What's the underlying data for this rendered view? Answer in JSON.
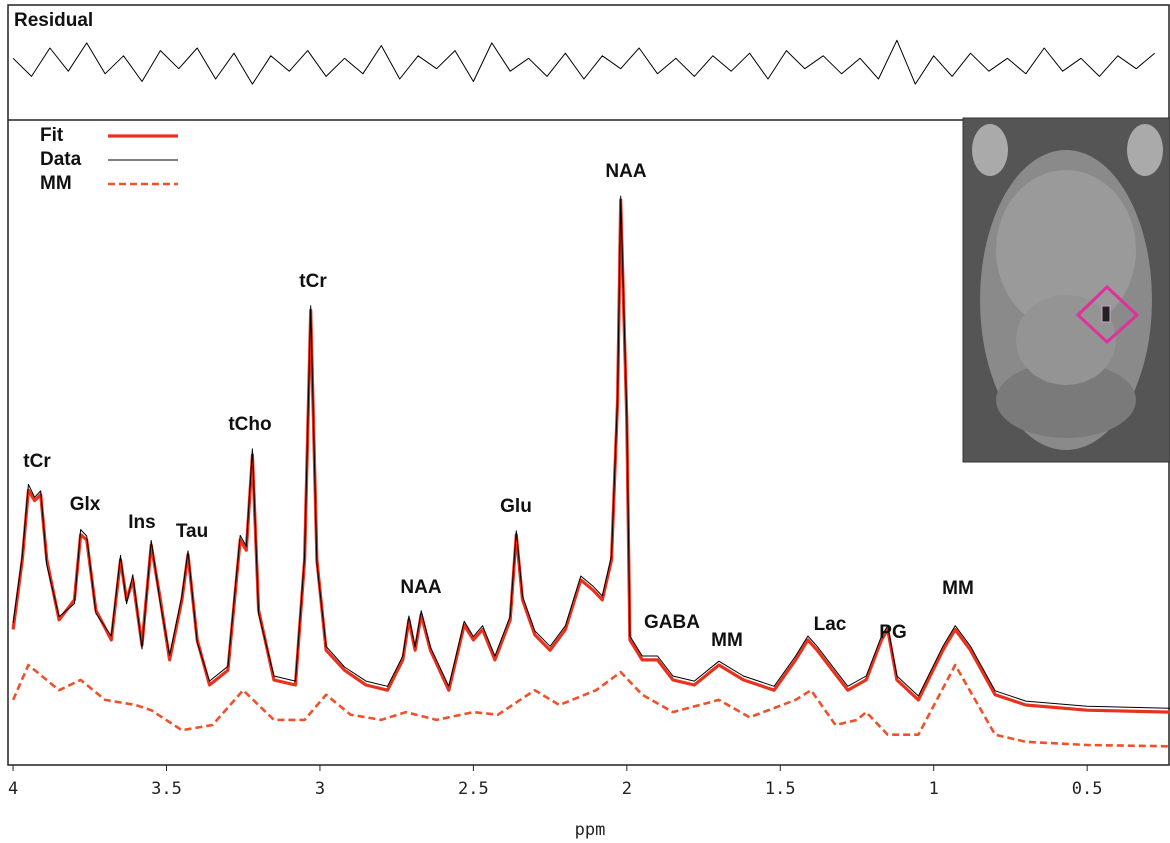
{
  "chart_data": [
    {
      "type": "line",
      "title": "Residual",
      "xlim": [
        4.01,
        0.23
      ],
      "ylim": [
        -20,
        20
      ],
      "series": [
        {
          "name": "Residual",
          "color": "#000000",
          "x": [
            4.0,
            3.94,
            3.88,
            3.82,
            3.76,
            3.7,
            3.64,
            3.58,
            3.52,
            3.46,
            3.4,
            3.34,
            3.28,
            3.22,
            3.16,
            3.1,
            3.04,
            2.98,
            2.92,
            2.86,
            2.8,
            2.74,
            2.68,
            2.62,
            2.56,
            2.5,
            2.44,
            2.38,
            2.32,
            2.26,
            2.2,
            2.14,
            2.08,
            2.02,
            1.96,
            1.9,
            1.84,
            1.78,
            1.72,
            1.66,
            1.6,
            1.54,
            1.48,
            1.42,
            1.36,
            1.3,
            1.24,
            1.18,
            1.12,
            1.06,
            1.0,
            0.94,
            0.88,
            0.82,
            0.76,
            0.7,
            0.64,
            0.58,
            0.52,
            0.46,
            0.4,
            0.34,
            0.28
          ],
          "values": [
            2,
            -5,
            6,
            -3,
            8,
            -4,
            3,
            -7,
            5,
            -2,
            6,
            -6,
            4,
            -8,
            3,
            -3,
            5,
            -5,
            2,
            -4,
            7,
            -6,
            3,
            -2,
            5,
            -7,
            8,
            -3,
            2,
            -5,
            4,
            -6,
            3,
            -2,
            6,
            -4,
            2,
            -5,
            3,
            -3,
            4,
            -6,
            5,
            -2,
            3,
            -4,
            2,
            -6,
            9,
            -8,
            3,
            -5,
            4,
            -3,
            2,
            -4,
            6,
            -3,
            2,
            -5,
            3,
            -2,
            4
          ]
        }
      ]
    },
    {
      "type": "line",
      "xlabel": "ppm",
      "xlim": [
        4.01,
        0.23
      ],
      "ylim": [
        0,
        100
      ],
      "xticks": [
        4,
        3.5,
        3,
        2.5,
        2,
        1.5,
        1,
        0.5
      ],
      "legend": "upper left",
      "annotations": [
        "tCr",
        "Glx",
        "Ins",
        "Tau",
        "tCho",
        "tCr",
        "NAA",
        "Glu",
        "NAA",
        "GABA",
        "MM",
        "Lac",
        "PG",
        "MM"
      ],
      "series": [
        {
          "name": "Fit",
          "color": "#e8321e",
          "x": [
            4.0,
            3.97,
            3.95,
            3.93,
            3.91,
            3.89,
            3.85,
            3.8,
            3.78,
            3.76,
            3.73,
            3.68,
            3.65,
            3.63,
            3.61,
            3.58,
            3.55,
            3.52,
            3.49,
            3.45,
            3.43,
            3.4,
            3.36,
            3.3,
            3.26,
            3.24,
            3.22,
            3.2,
            3.15,
            3.08,
            3.05,
            3.03,
            3.01,
            2.98,
            2.92,
            2.85,
            2.78,
            2.73,
            2.71,
            2.69,
            2.67,
            2.64,
            2.58,
            2.53,
            2.5,
            2.47,
            2.43,
            2.38,
            2.36,
            2.34,
            2.3,
            2.25,
            2.2,
            2.15,
            2.11,
            2.08,
            2.05,
            2.03,
            2.02,
            2.0,
            1.99,
            1.95,
            1.9,
            1.85,
            1.78,
            1.7,
            1.62,
            1.52,
            1.45,
            1.41,
            1.38,
            1.33,
            1.28,
            1.22,
            1.17,
            1.15,
            1.12,
            1.05,
            0.97,
            0.93,
            0.88,
            0.8,
            0.7,
            0.5,
            0.23
          ],
          "values": [
            21,
            31.8,
            42.6,
            41,
            41.9,
            31.8,
            22.5,
            25.6,
            35.7,
            34.9,
            24,
            19.4,
            31.8,
            25.6,
            28.7,
            18.6,
            34.1,
            25.6,
            16.3,
            25.6,
            32.6,
            19.4,
            12.4,
            14.7,
            34.9,
            33.3,
            48.1,
            24,
            13.2,
            12.4,
            31.8,
            70.5,
            31.8,
            17.8,
            14.7,
            12.4,
            11.6,
            16.3,
            22.5,
            17.8,
            23.3,
            17.8,
            11.6,
            21.7,
            19.4,
            21,
            16.3,
            22.5,
            35.7,
            25.6,
            20.2,
            17.8,
            21,
            28.7,
            27.1,
            25.6,
            31.8,
            56.6,
            87.6,
            53.5,
            19.4,
            16.3,
            16.3,
            13.2,
            12.4,
            15.5,
            13.2,
            11.6,
            16.3,
            19.4,
            17.8,
            14.7,
            11.6,
            13.2,
            19.4,
            21,
            13.2,
            10.1,
            17.8,
            21,
            17.8,
            10.9,
            9.3,
            8.5,
            8.2
          ]
        },
        {
          "name": "Data",
          "color": "#000000",
          "x": [
            4.0,
            3.97,
            3.95,
            3.93,
            3.91,
            3.89,
            3.85,
            3.8,
            3.78,
            3.76,
            3.73,
            3.68,
            3.65,
            3.63,
            3.61,
            3.58,
            3.55,
            3.52,
            3.49,
            3.45,
            3.43,
            3.4,
            3.36,
            3.3,
            3.26,
            3.24,
            3.22,
            3.2,
            3.15,
            3.08,
            3.05,
            3.03,
            3.01,
            2.98,
            2.92,
            2.85,
            2.78,
            2.73,
            2.71,
            2.69,
            2.67,
            2.64,
            2.58,
            2.53,
            2.5,
            2.47,
            2.43,
            2.38,
            2.36,
            2.34,
            2.3,
            2.25,
            2.2,
            2.15,
            2.11,
            2.08,
            2.05,
            2.03,
            2.02,
            2.0,
            1.99,
            1.95,
            1.9,
            1.85,
            1.78,
            1.7,
            1.62,
            1.52,
            1.45,
            1.41,
            1.38,
            1.33,
            1.28,
            1.22,
            1.17,
            1.15,
            1.12,
            1.05,
            0.97,
            0.93,
            0.88,
            0.8,
            0.7,
            0.5,
            0.23
          ],
          "values": [
            22,
            32.5,
            43.5,
            41.5,
            42.5,
            31,
            23,
            25,
            36.5,
            35.5,
            23.5,
            20,
            32.5,
            25,
            29.5,
            18,
            34.8,
            25,
            17,
            26.2,
            33.2,
            19,
            13,
            15.3,
            35.6,
            33.9,
            49,
            23.5,
            13.8,
            13,
            32.4,
            71.2,
            31.2,
            18.4,
            15.2,
            13,
            12.2,
            16.9,
            23.1,
            18.3,
            23.9,
            18.3,
            12.2,
            22.3,
            19.9,
            21.6,
            16.9,
            23.1,
            36.3,
            26.2,
            20.8,
            18.4,
            21.6,
            29.3,
            27.7,
            26.2,
            32.4,
            57.2,
            88.2,
            54.1,
            20,
            16.9,
            16.9,
            13.8,
            13,
            16.1,
            13.8,
            12.2,
            16.9,
            20,
            18.4,
            15.3,
            12.2,
            13.8,
            20,
            21.6,
            13.8,
            10.7,
            18.4,
            21.6,
            18.4,
            11.5,
            9.9,
            9.1,
            8.8
          ]
        },
        {
          "name": "MM",
          "color": "#f0502a",
          "dashed": true,
          "x": [
            4.0,
            3.95,
            3.85,
            3.78,
            3.7,
            3.6,
            3.55,
            3.45,
            3.35,
            3.25,
            3.15,
            3.05,
            2.98,
            2.9,
            2.8,
            2.72,
            2.62,
            2.5,
            2.42,
            2.3,
            2.22,
            2.1,
            2.02,
            1.95,
            1.85,
            1.7,
            1.6,
            1.45,
            1.4,
            1.32,
            1.25,
            1.22,
            1.15,
            1.05,
            0.93,
            0.8,
            0.7,
            0.5,
            0.23
          ],
          "values": [
            10.1,
            15.5,
            11.6,
            13.2,
            10.1,
            9.3,
            8.5,
            5.4,
            6.2,
            11.6,
            7,
            7,
            10.9,
            7.8,
            7,
            8.2,
            7,
            8.2,
            7.8,
            11.6,
            9.3,
            11.6,
            14.4,
            10.9,
            8.2,
            10.1,
            7.4,
            10.1,
            11.6,
            6.2,
            7,
            8.2,
            4.7,
            4.7,
            15.5,
            4.7,
            3.6,
            3.1,
            2.9
          ]
        }
      ]
    }
  ]
}
